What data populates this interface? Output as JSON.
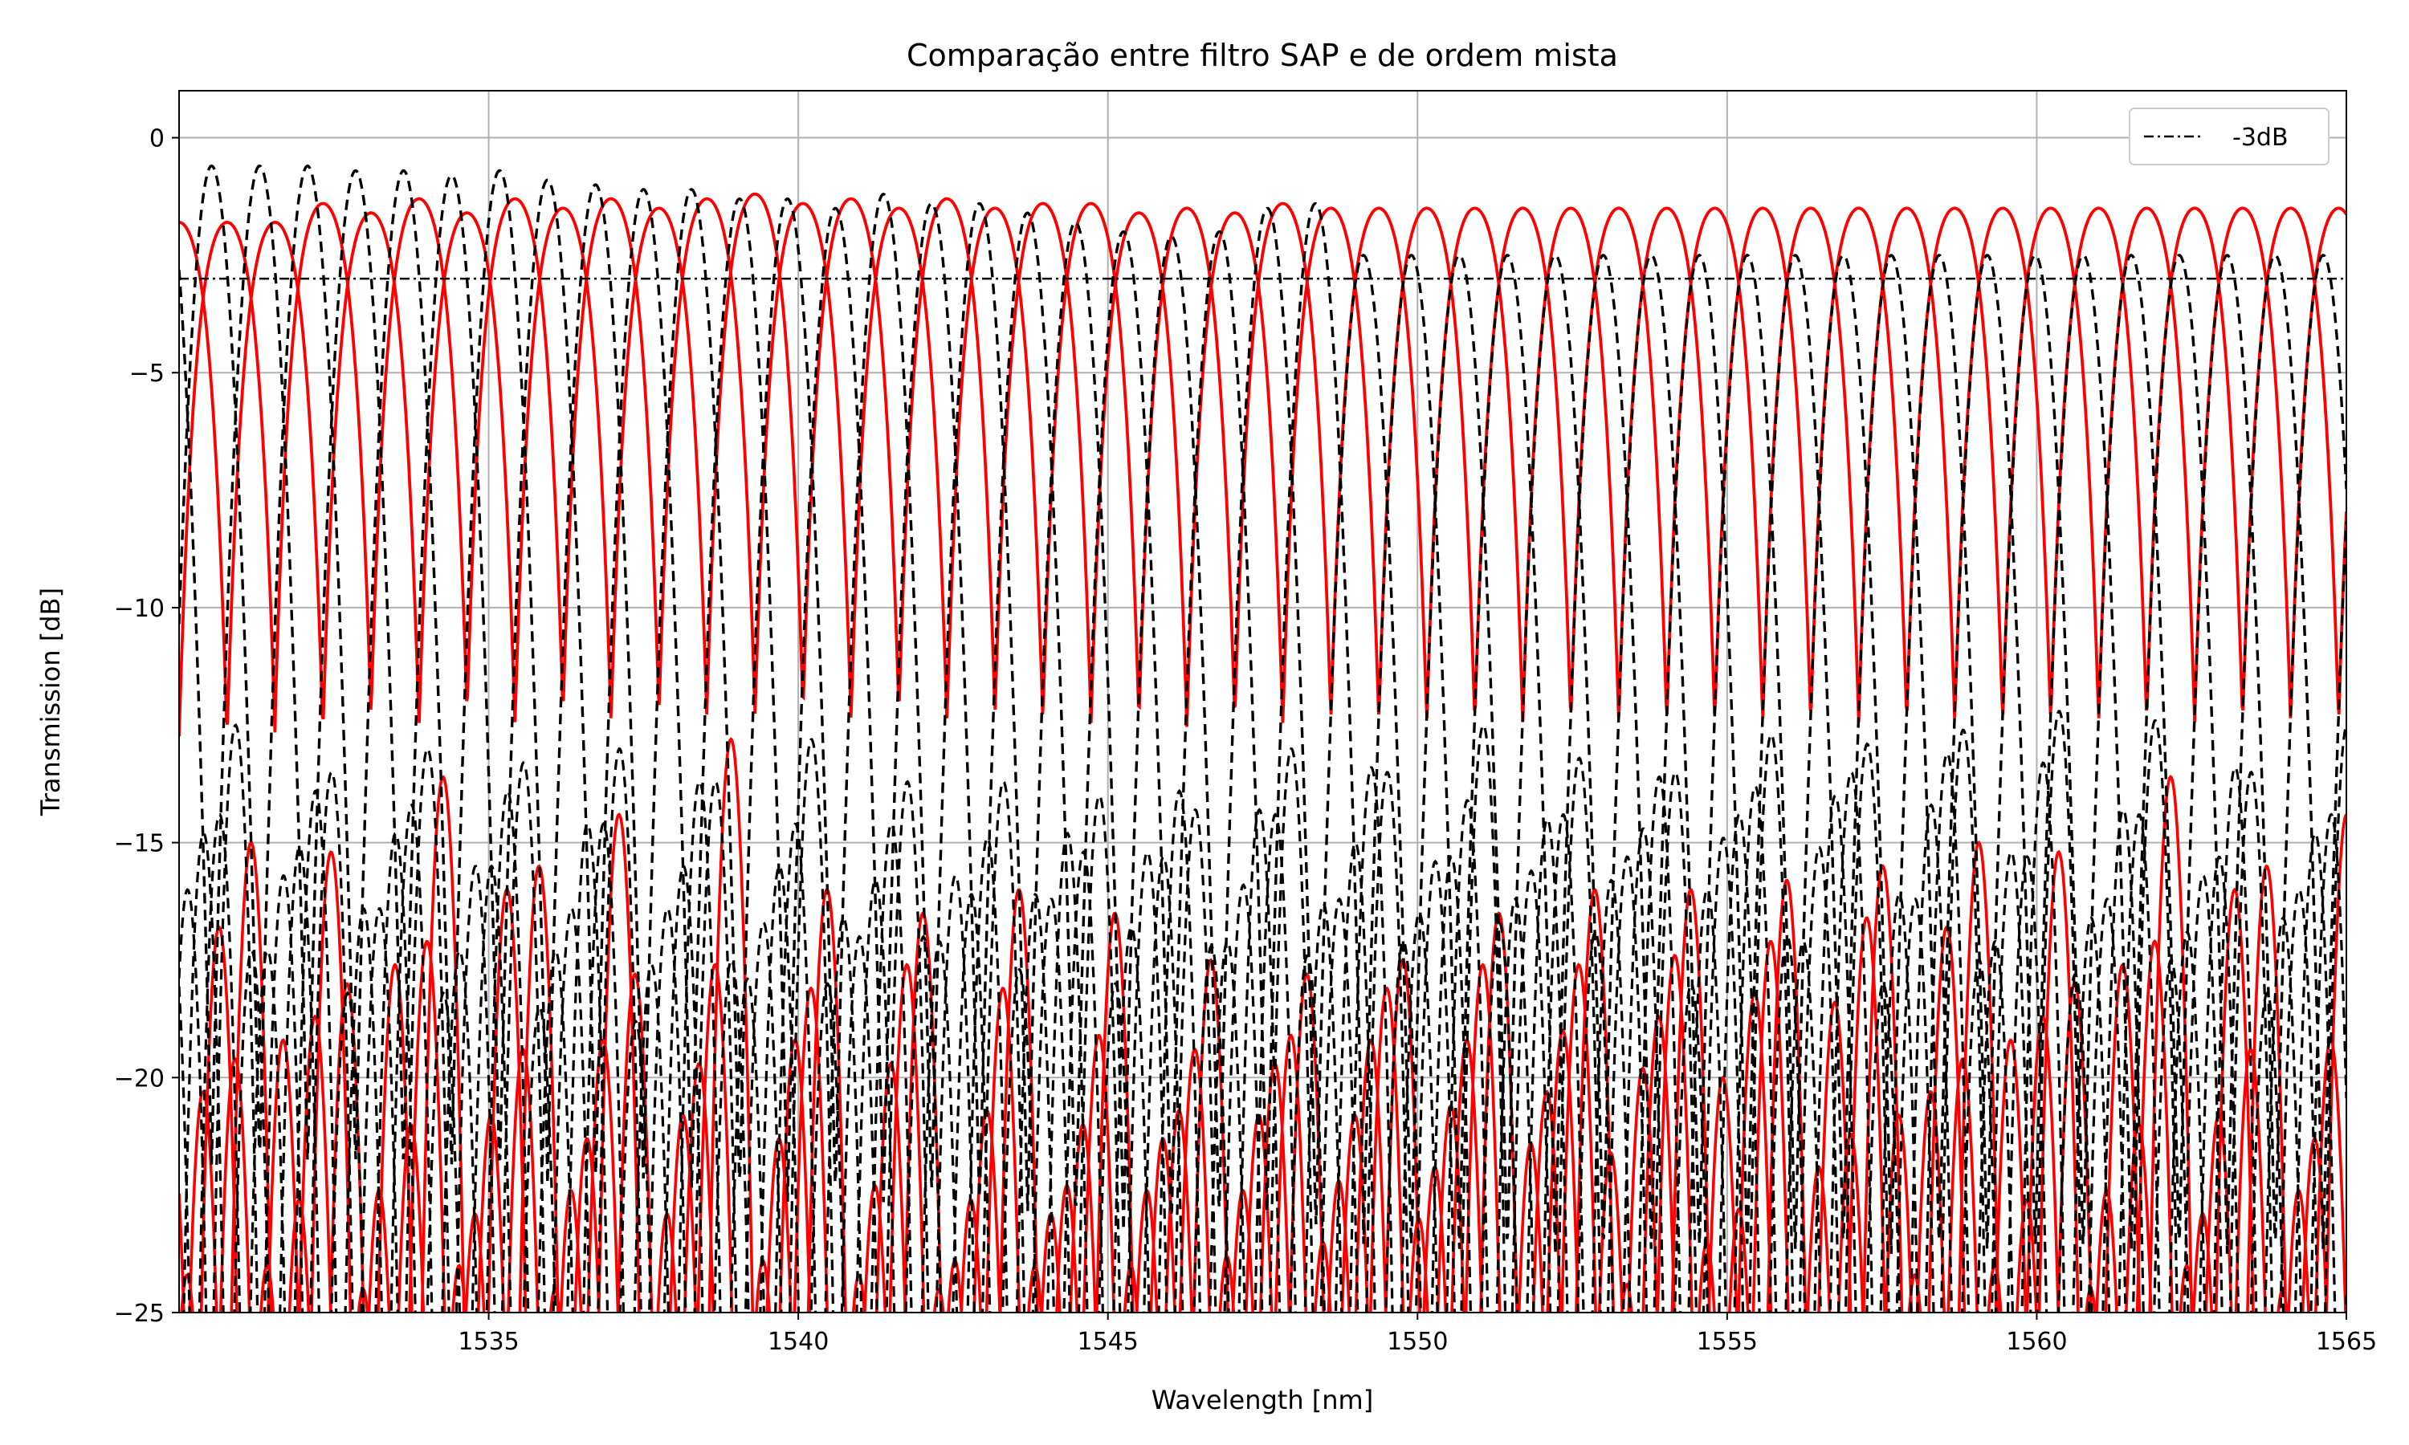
{
  "chart_data": {
    "type": "line",
    "title": "Comparação entre filtro SAP e de ordem mista",
    "xlabel": "Wavelength [nm]",
    "ylabel": "Transmission [dB]",
    "xlim": [
      1530,
      1565
    ],
    "ylim": [
      -25,
      1
    ],
    "xticks": [
      1535,
      1540,
      1545,
      1550,
      1555,
      1560,
      1565
    ],
    "yticks": [
      0,
      -5,
      -10,
      -15,
      -20,
      -25
    ],
    "xtick_labels": [
      "1535",
      "1540",
      "1545",
      "1550",
      "1555",
      "1560",
      "1565"
    ],
    "ytick_labels": [
      "0",
      "−5",
      "−10",
      "−15",
      "−20",
      "−25"
    ],
    "grid": true,
    "legend": {
      "placement": "top-right",
      "entries": [
        {
          "label": "-3dB",
          "style": "dash-dot",
          "color": "#000000"
        }
      ]
    },
    "reference_line": {
      "label": "-3dB",
      "y": -3,
      "color": "#000000",
      "style": "dash-dot"
    },
    "families": [
      {
        "style": "solid",
        "color": "#ff0000",
        "channel_spacing_nm": 1.55,
        "passband_peaks_db": [
          -1.8,
          -1.4,
          -1.6,
          -1.3,
          -1.6,
          -1.3,
          -1.5,
          -1.3,
          -1.5,
          -1.3,
          -1.2,
          -1.4,
          -1.3,
          -1.5,
          -1.3,
          -1.5,
          -1.4,
          -1.4,
          -1.6,
          -1.5,
          -1.6,
          -1.4,
          -1.5,
          -1.5
        ],
        "sidelobe_peaks_db": [
          -15.0,
          -18.0,
          -13.6,
          -15.5,
          -17.8,
          -12.8,
          -16.0,
          -16.5,
          -16.0,
          -16.5,
          -17.5,
          -17.8,
          -17.5,
          -16.5,
          -16.0,
          -16.0,
          -15.8,
          -15.5
        ]
      },
      {
        "style": "dashed",
        "color": "#000000",
        "channel_spacing_nm": 1.55,
        "passband_peaks_db": [
          -0.6,
          -0.6,
          -0.7,
          -0.7,
          -0.8,
          -0.7,
          -0.9,
          -1.0,
          -1.1,
          -1.1,
          -1.3,
          -1.3,
          -1.5,
          -1.2,
          -1.4,
          -1.4,
          -1.6,
          -1.8,
          -2.0,
          -2.1,
          -2.0,
          -1.5,
          -1.4,
          -2.5
        ],
        "sidelobe_peaks_db": [
          -12.5,
          -13.5,
          -13.0,
          -13.3,
          -13.0,
          -13.7,
          -12.8,
          -13.7,
          -13.7,
          -14.0,
          -14.3,
          -13.0,
          -13.5,
          -12.5,
          -13.2,
          -13.5,
          -12.7,
          -12.9,
          -12.6,
          -12.2,
          -12.4,
          -13.5
        ]
      }
    ]
  }
}
